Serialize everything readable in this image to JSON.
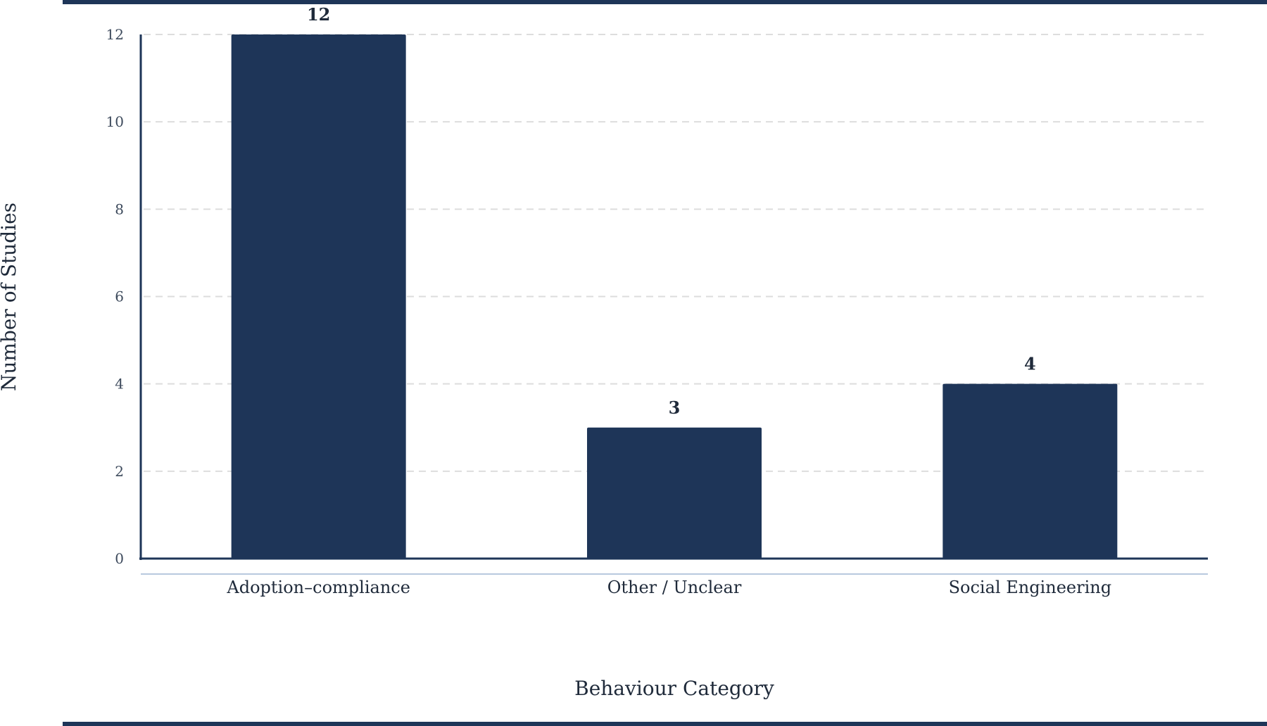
{
  "chart_data": {
    "type": "bar",
    "categories": [
      "Adoption–compliance",
      "Other / Unclear",
      "Social Engineering"
    ],
    "values": [
      12,
      3,
      4
    ],
    "data_labels": [
      "12",
      "3",
      "4"
    ],
    "title": "",
    "xlabel": "Behaviour Category",
    "ylabel": "Number of Studies",
    "ylim": [
      0,
      12
    ],
    "yticks": [
      0,
      2,
      4,
      6,
      8,
      10,
      12
    ],
    "grid": true,
    "legend": "none",
    "colors": {
      "bar": "#1e3558",
      "axis": "#1e3558",
      "frame": "#1e3558",
      "grid": "#dddddd",
      "baseline": "#b8c9de"
    }
  }
}
